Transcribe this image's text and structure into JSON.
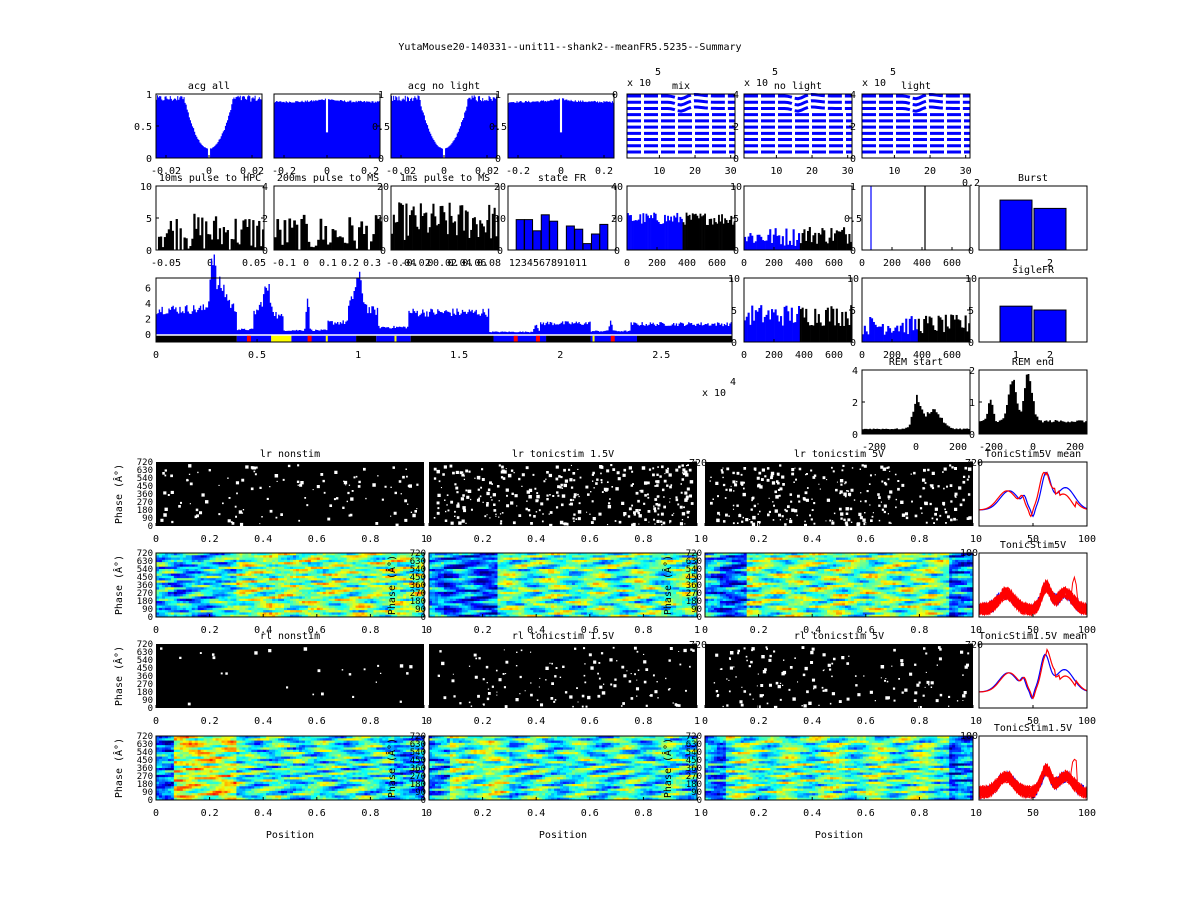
{
  "figure_title": "YutaMouse20-140331--unit11--shank2--meanFR5.5235--Summary",
  "colors": {
    "blue": "#0000ff",
    "black": "#000000",
    "red": "#ff0000",
    "yellow": "#ffff00"
  },
  "chart_data": [
    {
      "id": "acg_all",
      "type": "bar",
      "title": "acg all",
      "xticks": [
        "-0.02",
        "0",
        "0.02"
      ],
      "yticks": [
        "0",
        "0.5",
        "1"
      ],
      "ylim": [
        0,
        1
      ],
      "shape": "acg_wide_dip"
    },
    {
      "id": "acg_all_wide",
      "type": "bar",
      "title": "",
      "xticks": [
        "-0.2",
        "0",
        "0.2"
      ],
      "yticks_right": [
        "0",
        "0.5",
        "1"
      ],
      "ylim": [
        0,
        1
      ],
      "shape": "acg_flat_notch"
    },
    {
      "id": "acg_nolight",
      "type": "bar",
      "title": "acg no light",
      "xticks": [
        "-0.02",
        "0",
        "0.02"
      ],
      "yticks_right": [
        "0",
        "0.5",
        "1"
      ],
      "ylim": [
        0,
        1
      ],
      "shape": "acg_wide_dip"
    },
    {
      "id": "acg_nolight_wide",
      "type": "bar",
      "title": "",
      "xticks": [
        "-0.2",
        "0",
        "0.2"
      ],
      "yticks_right": [
        "0"
      ],
      "ylim": [
        0,
        1
      ],
      "shape": "acg_flat_notch"
    },
    {
      "id": "wf_mix",
      "type": "line",
      "title": "mix",
      "exponent": "x 10",
      "exponent_power": "5",
      "xticks": [
        "10",
        "20",
        "30"
      ],
      "yticks_right": [
        "0",
        "2",
        "4"
      ],
      "ylim": [
        0,
        4.5
      ],
      "channels": 10
    },
    {
      "id": "wf_nolight",
      "type": "line",
      "title": "no light",
      "exponent": "x 10",
      "exponent_power": "5",
      "xticks": [
        "10",
        "20",
        "30"
      ],
      "yticks_right": [
        "0",
        "2",
        "4"
      ],
      "ylim": [
        0,
        4.5
      ],
      "channels": 10
    },
    {
      "id": "wf_light",
      "type": "line",
      "title": "light",
      "exponent": "x 10",
      "exponent_power": "5",
      "xticks": [
        "10",
        "20",
        "30"
      ],
      "yticks_right": [],
      "ylim": [
        0,
        4.5
      ],
      "channels": 10
    },
    {
      "id": "pulse10",
      "type": "bar",
      "title": "10ms pulse to HPC",
      "xticks": [
        "-0.05",
        "0",
        "0.05"
      ],
      "yticks": [
        "0",
        "5",
        "10"
      ],
      "yticks_right": [
        "0",
        "2",
        "4"
      ],
      "ylim": [
        0,
        10
      ]
    },
    {
      "id": "pulse200",
      "type": "bar",
      "title": "200ms pulse to MS",
      "xticks": [
        "-0.1",
        "0",
        "0.1",
        "0.2",
        "0.3"
      ],
      "yticks_right": [
        "0",
        "10",
        "20"
      ],
      "ylim": [
        0,
        20
      ]
    },
    {
      "id": "pulse1",
      "type": "bar",
      "title": "1ms pulse to MS",
      "xticks": [
        "-0.04",
        "-0.02",
        "0",
        "0.02",
        "0.04",
        "0.06",
        "0.08"
      ],
      "yticks_right": [
        "0",
        "10",
        "20"
      ],
      "ylim": [
        0,
        20
      ]
    },
    {
      "id": "state_fr",
      "type": "bar",
      "title": "state FR",
      "categories": [
        "1",
        "2",
        "3",
        "4",
        "5",
        "6",
        "7",
        "8",
        "9",
        "10",
        "11"
      ],
      "xtick_text": "1234567891011",
      "values": [
        19,
        19,
        12,
        22,
        18,
        0,
        15,
        13,
        4,
        10,
        16
      ],
      "yticks_right": [
        "0",
        "20",
        "40"
      ],
      "ylim": [
        0,
        40
      ]
    },
    {
      "id": "isi_a",
      "type": "bar",
      "title": "",
      "xticks": [
        "0",
        "200",
        "400",
        "600"
      ],
      "yticks_right": [
        "0",
        "5",
        "10"
      ],
      "ylim": [
        0,
        10
      ],
      "split": 370
    },
    {
      "id": "isi_b",
      "type": "bar",
      "title": "",
      "xticks": [
        "0",
        "200",
        "400",
        "600"
      ],
      "yticks_right": [
        "0",
        "0.5",
        "1"
      ],
      "ylim": [
        0,
        10
      ],
      "split": 370
    },
    {
      "id": "isi_c",
      "type": "line",
      "title": "",
      "xticks": [
        "0",
        "200",
        "400",
        "600"
      ],
      "yticks_right": [
        "0",
        "0.2"
      ],
      "ylim": [
        0,
        1
      ],
      "lines": [
        {
          "x": 60,
          "color": "blue"
        },
        {
          "x": 420,
          "color": "black"
        }
      ]
    },
    {
      "id": "burst",
      "type": "bar",
      "title": "Burst",
      "categories": [
        "1",
        "2"
      ],
      "values": [
        0.78,
        0.65
      ],
      "ylim": [
        0,
        1
      ]
    },
    {
      "id": "fr_time",
      "type": "area",
      "title": "",
      "xticks": [
        "0",
        "0.5",
        "1",
        "1.5",
        "2",
        "2.5"
      ],
      "yticks": [
        "0",
        "2",
        "4",
        "6"
      ],
      "yticks_right": [
        "0",
        "5",
        "10"
      ],
      "ylim": [
        -1,
        7.2
      ],
      "exponent": "x 10",
      "exponent_power": "4",
      "xlim": [
        0,
        2.85
      ]
    },
    {
      "id": "isi_d",
      "type": "bar",
      "title": "",
      "xticks": [
        "0",
        "200",
        "400",
        "600"
      ],
      "yticks_right": [
        "0",
        "5",
        "10"
      ],
      "ylim": [
        0,
        10
      ],
      "split": 370
    },
    {
      "id": "isi_e",
      "type": "bar",
      "title": "",
      "xticks": [
        "0",
        "200",
        "400",
        "600"
      ],
      "yticks_right": [
        "0",
        "5",
        "10"
      ],
      "ylim": [
        0,
        10
      ],
      "split": 370
    },
    {
      "id": "sigle_fr",
      "type": "bar",
      "title": "sigleFR",
      "categories": [
        "1",
        "2"
      ],
      "values": [
        5.6,
        5.0
      ],
      "ylim": [
        0,
        10
      ]
    },
    {
      "id": "rem_start",
      "type": "area",
      "title": "REM start",
      "xticks": [
        "-200",
        "0",
        "200"
      ],
      "yticks": [
        "0",
        "2",
        "4"
      ],
      "ylim": [
        0,
        4
      ]
    },
    {
      "id": "rem_end",
      "type": "area",
      "title": "REM end",
      "xticks": [
        "-200",
        "0",
        "200"
      ],
      "yticks": [
        "0",
        "1",
        "2"
      ],
      "ylim": [
        0,
        2
      ]
    },
    {
      "id": "lr_nonstim_raster",
      "type": "scatter",
      "title": "lr nonstim",
      "ylabel": "Phase (Â°)",
      "xticks": [
        "0",
        "0.2",
        "0.4",
        "0.6",
        "0.8",
        "1"
      ],
      "yticks": [
        "0",
        "90",
        "180",
        "270",
        "360",
        "450",
        "540",
        "630",
        "720"
      ],
      "density": 0.86
    },
    {
      "id": "lr_tonic15_raster",
      "type": "scatter",
      "title": "lr tonicstim 1.5V",
      "xticks": [
        "0",
        "0.2",
        "0.4",
        "0.6",
        "0.8",
        "1"
      ],
      "yticks_right": [
        "720"
      ],
      "density": 0.62
    },
    {
      "id": "lr_tonic5_raster",
      "type": "scatter",
      "title": "lr tonicstim 5V",
      "xticks": [
        "0",
        "0.2",
        "0.4",
        "0.6",
        "0.8",
        "1"
      ],
      "yticks_right": [
        "720"
      ],
      "density": 0.66
    },
    {
      "id": "tonic5_mean",
      "type": "line",
      "title": "TonicStim5V mean",
      "xticks": [
        "0",
        "50",
        "100"
      ],
      "series": [
        {
          "name": "blue",
          "color": "blue"
        },
        {
          "name": "red",
          "color": "red"
        }
      ]
    },
    {
      "id": "lr_nonstim_heat",
      "type": "heatmap",
      "title": "",
      "ylabel": "Phase (Â°)",
      "xticks": [
        "0",
        "0.2",
        "0.4",
        "0.6",
        "0.8",
        "1"
      ],
      "yticks": [
        "0",
        "90",
        "180",
        "270",
        "360",
        "450",
        "540",
        "630",
        "720"
      ]
    },
    {
      "id": "lr_tonic15_heat",
      "type": "heatmap",
      "title": "",
      "ylabel": "Phase (Â°)",
      "xticks": [
        "0",
        "0.2",
        "0.4",
        "0.6",
        "0.8",
        "1"
      ],
      "yticks": [
        "0",
        "90",
        "180",
        "270",
        "360",
        "450",
        "540",
        "630",
        "720"
      ]
    },
    {
      "id": "lr_tonic5_heat",
      "type": "heatmap",
      "title": "",
      "ylabel": "Phase (Â°)",
      "xticks": [
        "0",
        "0.2",
        "0.4",
        "0.6",
        "0.8",
        "1"
      ],
      "yticks": [
        "0",
        "90",
        "180",
        "270",
        "360",
        "450",
        "540",
        "630",
        "720"
      ],
      "yticks_right": [
        "100"
      ]
    },
    {
      "id": "tonic5_all",
      "type": "line",
      "title": "TonicStim5V",
      "xticks": [
        "0",
        "50",
        "100"
      ]
    },
    {
      "id": "rl_nonstim_raster",
      "type": "scatter",
      "title": "rl nonstim",
      "ylabel": "Phase (Â°)",
      "xticks": [
        "0",
        "0.2",
        "0.4",
        "0.6",
        "0.8",
        "1"
      ],
      "yticks": [
        "0",
        "90",
        "180",
        "270",
        "360",
        "450",
        "540",
        "630",
        "720"
      ],
      "density": 0.97
    },
    {
      "id": "rl_tonic15_raster",
      "type": "scatter",
      "title": "rl tonicstim 1.5V",
      "xticks": [
        "0",
        "0.2",
        "0.4",
        "0.6",
        "0.8",
        "1"
      ],
      "yticks_right": [
        "720"
      ],
      "density": 0.85
    },
    {
      "id": "rl_tonic5_raster",
      "type": "scatter",
      "title": "rl tonicstim 5V",
      "xticks": [
        "0",
        "0.2",
        "0.4",
        "0.6",
        "0.8",
        "1"
      ],
      "yticks_right": [
        "720"
      ],
      "density": 0.83
    },
    {
      "id": "tonic15_mean",
      "type": "line",
      "title": "TonicStim1.5V mean",
      "xticks": [
        "0",
        "50",
        "100"
      ]
    },
    {
      "id": "rl_nonstim_heat",
      "type": "heatmap",
      "title": "",
      "ylabel": "Phase (Â°)",
      "xlabel": "Position",
      "xticks": [
        "0",
        "0.2",
        "0.4",
        "0.6",
        "0.8",
        "1"
      ],
      "yticks": [
        "0",
        "90",
        "180",
        "270",
        "360",
        "450",
        "540",
        "630",
        "720"
      ]
    },
    {
      "id": "rl_tonic15_heat",
      "type": "heatmap",
      "title": "",
      "ylabel": "Phase (Â°)",
      "xlabel": "Position",
      "xticks": [
        "0",
        "0.2",
        "0.4",
        "0.6",
        "0.8",
        "1"
      ],
      "yticks": [
        "0",
        "90",
        "180",
        "270",
        "360",
        "450",
        "540",
        "630",
        "720"
      ]
    },
    {
      "id": "rl_tonic5_heat",
      "type": "heatmap",
      "title": "",
      "ylabel": "Phase (Â°)",
      "xlabel": "Position",
      "xticks": [
        "0",
        "0.2",
        "0.4",
        "0.6",
        "0.8",
        "1"
      ],
      "yticks": [
        "0",
        "90",
        "180",
        "270",
        "360",
        "450",
        "540",
        "630",
        "720"
      ],
      "yticks_right": [
        "100"
      ]
    },
    {
      "id": "tonic15_all",
      "type": "line",
      "title": "TonicStim1.5V",
      "xticks": [
        "0",
        "50",
        "100"
      ]
    }
  ]
}
